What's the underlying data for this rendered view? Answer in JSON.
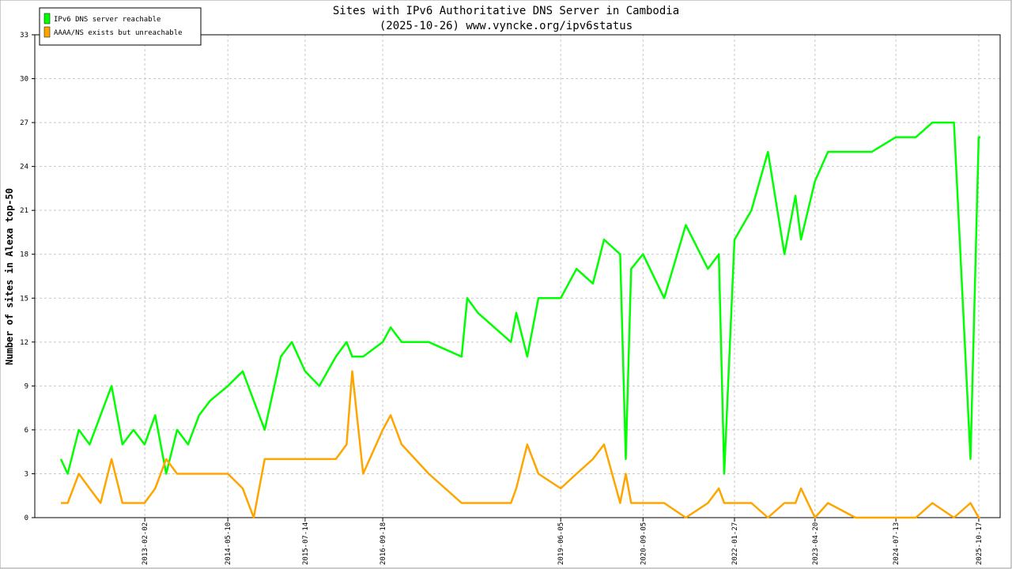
{
  "chart_data": {
    "type": "line",
    "title": "Sites with IPv6 Authoritative DNS Server in Cambodia",
    "subtitle": "(2025-10-26) www.vyncke.org/ipv6status",
    "y_label": "Number of sites in Alexa top-50",
    "legend": "top-left",
    "grid": true,
    "x": [
      "2011-10-24",
      "2011-12-01",
      "2012-02-01",
      "2012-04-01",
      "2012-06-01",
      "2012-08-01",
      "2012-10-01",
      "2012-12-01",
      "2013-02-01",
      "2013-04-01",
      "2013-06-01",
      "2013-08-01",
      "2013-10-01",
      "2013-12-01",
      "2014-02-01",
      "2014-05-10",
      "2014-08-01",
      "2014-10-01",
      "2014-12-01",
      "2015-03-01",
      "2015-05-01",
      "2015-07-14",
      "2015-10-01",
      "2016-01-01",
      "2016-03-01",
      "2016-04-01",
      "2016-06-01",
      "2016-09-18",
      "2016-11-01",
      "2017-01-01",
      "2017-06-01",
      "2017-12-01",
      "2018-01-01",
      "2018-03-01",
      "2018-09-01",
      "2018-10-01",
      "2018-12-01",
      "2019-02-01",
      "2019-06-05",
      "2019-09-01",
      "2019-12-01",
      "2020-02-01",
      "2020-05-01",
      "2020-06-01",
      "2020-07-01",
      "2020-09-05",
      "2021-01-01",
      "2021-05-01",
      "2021-09-01",
      "2021-11-01",
      "2021-12-01",
      "2022-01-27",
      "2022-05-01",
      "2022-08-01",
      "2022-11-01",
      "2023-01-01",
      "2023-02-01",
      "2023-04-20",
      "2023-07-01",
      "2023-12-01",
      "2024-03-01",
      "2024-07-13",
      "2024-11-01",
      "2025-02-01",
      "2025-06-01",
      "2025-09-01",
      "2025-10-17",
      "2025-10-26"
    ],
    "series": [
      {
        "name": "IPv6 DNS server reachable",
        "color": "#00ff00",
        "values": [
          4,
          3,
          6,
          5,
          7,
          9,
          5,
          6,
          5,
          7,
          3,
          6,
          5,
          7,
          8,
          9,
          10,
          8,
          6,
          11,
          12,
          10,
          9,
          11,
          12,
          11,
          11,
          12,
          13,
          12,
          12,
          11,
          15,
          14,
          12,
          14,
          11,
          15,
          15,
          17,
          16,
          19,
          18,
          4,
          17,
          18,
          15,
          20,
          17,
          18,
          3,
          19,
          21,
          25,
          18,
          22,
          19,
          23,
          25,
          25,
          25,
          26,
          26,
          27,
          27,
          4,
          26,
          26
        ]
      },
      {
        "name": "AAAA/NS exists but unreachable",
        "color": "#ffa500",
        "values": [
          1,
          1,
          3,
          2,
          1,
          4,
          1,
          1,
          1,
          2,
          4,
          3,
          3,
          3,
          3,
          3,
          2,
          0,
          4,
          4,
          4,
          4,
          4,
          4,
          5,
          10,
          3,
          6,
          7,
          5,
          3,
          1,
          1,
          1,
          1,
          2,
          5,
          3,
          2,
          3,
          4,
          5,
          1,
          3,
          1,
          1,
          1,
          0,
          1,
          2,
          1,
          1,
          1,
          0,
          1,
          1,
          2,
          0,
          1,
          0,
          0,
          0,
          0,
          1,
          0,
          1,
          0,
          0
        ]
      }
    ],
    "xlim": [
      "2011-06-01",
      "2026-02-13"
    ],
    "xticks": [
      "2013-02-02",
      "2014-05-10",
      "2015-07-14",
      "2016-09-18",
      "2019-06-05",
      "2020-09-05",
      "2022-01-27",
      "2023-04-20",
      "2024-07-13",
      "2025-10-17"
    ],
    "ylim": [
      0,
      33
    ],
    "yticks": [
      0,
      3,
      6,
      9,
      12,
      15,
      18,
      21,
      24,
      27,
      30,
      33
    ]
  }
}
